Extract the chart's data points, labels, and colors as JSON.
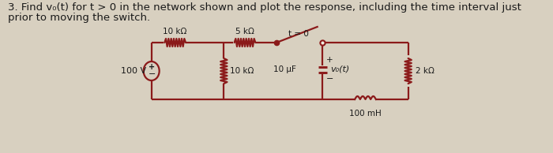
{
  "title_line1": "3. Find v₀(t) for t > 0 in the network shown and plot the response, including the time interval just",
  "title_line2": "prior to moving the switch.",
  "title_fontsize": 9.5,
  "bg_color": "#d8d0c0",
  "paper_color": "#f0ece0",
  "circuit_color": "#8B1A1A",
  "text_color": "#1a1a1a",
  "resistor_10k_1_label": "10 kΩ",
  "resistor_5k_label": "5 kΩ",
  "resistor_10k_2_label": "10 kΩ",
  "resistor_2k_label": "2 kΩ",
  "source_label": "100 V",
  "capacitor_label": "10 μF",
  "inductor_label": "100 mH",
  "switch_label": "t = 0",
  "vo_label": "v₀(t)"
}
